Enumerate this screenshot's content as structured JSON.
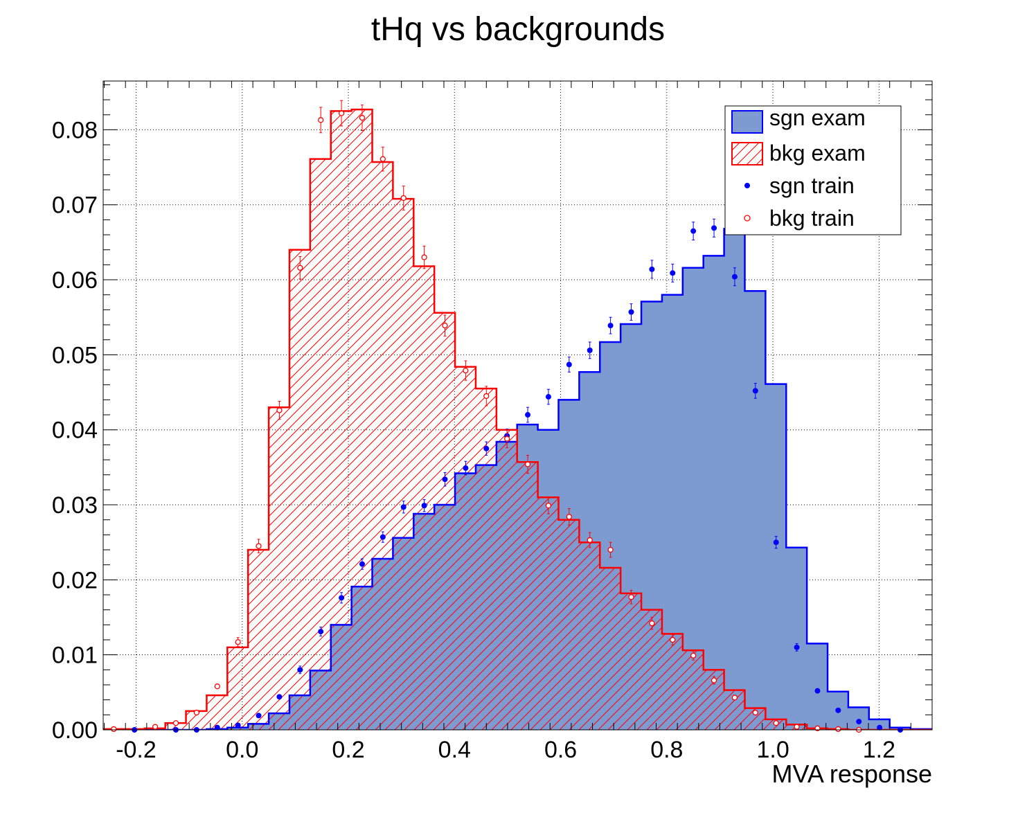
{
  "chart_data": {
    "type": "histogram",
    "title": "tHq vs backgrounds",
    "xlabel": "MVA response",
    "ylabel": "",
    "xlim": [
      -0.262,
      1.3
    ],
    "ylim": [
      0,
      0.0865
    ],
    "grid": true,
    "legend_position": "top-right",
    "x_ticks": [
      "-0.2",
      "0.0",
      "0.2",
      "0.4",
      "0.6",
      "0.8",
      "1.0",
      "1.2"
    ],
    "x_tick_values": [
      -0.2,
      0.0,
      0.2,
      0.4,
      0.6,
      0.8,
      1.0,
      1.2
    ],
    "y_ticks": [
      "0.00",
      "0.01",
      "0.02",
      "0.03",
      "0.04",
      "0.05",
      "0.06",
      "0.07",
      "0.08"
    ],
    "y_tick_values": [
      0.0,
      0.01,
      0.02,
      0.03,
      0.04,
      0.05,
      0.06,
      0.07,
      0.08
    ],
    "bin_edges": [
      -0.262,
      -0.223,
      -0.184,
      -0.145,
      -0.106,
      -0.067,
      -0.028,
      0.011,
      0.05,
      0.089,
      0.128,
      0.167,
      0.206,
      0.245,
      0.284,
      0.323,
      0.362,
      0.401,
      0.44,
      0.479,
      0.518,
      0.557,
      0.596,
      0.635,
      0.674,
      0.713,
      0.752,
      0.791,
      0.83,
      0.869,
      0.908,
      0.947,
      0.986,
      1.025,
      1.064,
      1.103,
      1.142,
      1.181,
      1.22,
      1.259,
      1.3
    ],
    "series": [
      {
        "name": "sgn exam",
        "kind": "filled-histogram",
        "color": "#0000ff",
        "fill": "#7d9bd1",
        "values": [
          0,
          0,
          0,
          0,
          0,
          0.0001,
          0.0003,
          0.0008,
          0.0022,
          0.0046,
          0.0079,
          0.014,
          0.0191,
          0.0228,
          0.0256,
          0.0288,
          0.03,
          0.0342,
          0.0353,
          0.0384,
          0.0407,
          0.04,
          0.044,
          0.0477,
          0.0517,
          0.0541,
          0.0571,
          0.058,
          0.0616,
          0.0632,
          0.0668,
          0.0585,
          0.0461,
          0.0243,
          0.0115,
          0.0051,
          0.003,
          0.0014,
          0.0003,
          0.0001
        ]
      },
      {
        "name": "bkg exam",
        "kind": "hatched-histogram",
        "color": "#ff0000",
        "values": [
          0.0001,
          0.0001,
          0.0002,
          0.0009,
          0.0025,
          0.0046,
          0.011,
          0.024,
          0.043,
          0.064,
          0.0761,
          0.0825,
          0.0827,
          0.0757,
          0.0708,
          0.0618,
          0.0556,
          0.0484,
          0.0455,
          0.04,
          0.0357,
          0.031,
          0.028,
          0.025,
          0.0216,
          0.0182,
          0.016,
          0.0128,
          0.0106,
          0.008,
          0.0053,
          0.0029,
          0.0014,
          0.0007,
          0.0002,
          0.0001,
          0,
          0,
          0,
          0
        ]
      },
      {
        "name": "sgn train",
        "kind": "points",
        "marker": "filled-circle",
        "color": "#0000ff",
        "x": [
          -0.203,
          -0.125,
          -0.086,
          -0.047,
          -0.008,
          0.031,
          0.07,
          0.109,
          0.148,
          0.187,
          0.226,
          0.265,
          0.304,
          0.343,
          0.382,
          0.421,
          0.46,
          0.499,
          0.538,
          0.577,
          0.616,
          0.655,
          0.694,
          0.733,
          0.772,
          0.811,
          0.85,
          0.889,
          0.928,
          0.967,
          1.006,
          1.045,
          1.084,
          1.123,
          1.162,
          1.201,
          1.24
        ],
        "y": [
          0.0,
          0.0,
          0.0,
          0.0003,
          0.0006,
          0.0019,
          0.0044,
          0.008,
          0.0131,
          0.0176,
          0.0221,
          0.0257,
          0.0297,
          0.0299,
          0.0334,
          0.0349,
          0.0375,
          0.0392,
          0.042,
          0.0444,
          0.0487,
          0.0506,
          0.0539,
          0.0557,
          0.0614,
          0.0609,
          0.0665,
          0.0669,
          0.0604,
          0.0452,
          0.025,
          0.011,
          0.0052,
          0.0026,
          0.0011,
          0.0003,
          0.0
        ],
        "err": [
          0.0001,
          0.0001,
          0.0001,
          0.0002,
          0.0002,
          0.0003,
          0.0004,
          0.0005,
          0.0006,
          0.0007,
          0.0007,
          0.0007,
          0.0008,
          0.0008,
          0.0009,
          0.0009,
          0.0009,
          0.0009,
          0.001,
          0.001,
          0.001,
          0.0011,
          0.0011,
          0.0011,
          0.0012,
          0.0012,
          0.0012,
          0.0012,
          0.0012,
          0.001,
          0.0008,
          0.0005,
          0.0003,
          0.0002,
          0.0001,
          0.0001,
          0.0001
        ]
      },
      {
        "name": "bkg train",
        "kind": "points",
        "marker": "open-circle",
        "color": "#ff0000",
        "x": [
          -0.242,
          -0.164,
          -0.125,
          -0.086,
          -0.047,
          -0.008,
          0.031,
          0.07,
          0.109,
          0.148,
          0.187,
          0.226,
          0.265,
          0.304,
          0.343,
          0.382,
          0.421,
          0.46,
          0.499,
          0.538,
          0.577,
          0.616,
          0.655,
          0.694,
          0.733,
          0.772,
          0.811,
          0.85,
          0.889,
          0.928,
          0.967,
          1.006,
          1.045,
          1.084,
          1.123,
          1.162
        ],
        "y": [
          0.0001,
          0.0004,
          0.0009,
          0.0023,
          0.0058,
          0.0117,
          0.0245,
          0.0426,
          0.0616,
          0.0813,
          0.0822,
          0.0816,
          0.0761,
          0.0709,
          0.063,
          0.0539,
          0.0479,
          0.0445,
          0.0388,
          0.0354,
          0.0299,
          0.0284,
          0.0253,
          0.024,
          0.0177,
          0.0142,
          0.012,
          0.0099,
          0.0066,
          0.0043,
          0.0023,
          0.0009,
          0.0004,
          0.0002,
          0.0001,
          0.0
        ],
        "err": [
          0.0001,
          0.0001,
          0.0002,
          0.0003,
          0.0004,
          0.0006,
          0.0009,
          0.0012,
          0.0015,
          0.0017,
          0.0017,
          0.0017,
          0.0016,
          0.0016,
          0.0015,
          0.0014,
          0.0013,
          0.0013,
          0.0012,
          0.0012,
          0.0011,
          0.0011,
          0.001,
          0.001,
          0.0009,
          0.0008,
          0.0007,
          0.0006,
          0.0005,
          0.0004,
          0.0003,
          0.0002,
          0.0001,
          0.0001,
          0.0001,
          0.0001
        ]
      }
    ]
  }
}
